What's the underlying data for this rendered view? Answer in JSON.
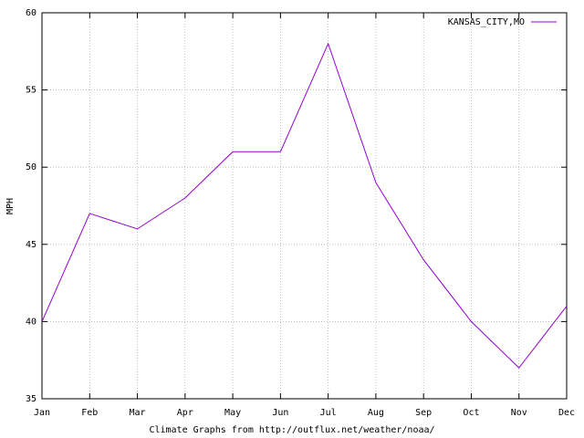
{
  "chart_data": {
    "type": "line",
    "x_label": "Climate Graphs from http://outflux.net/weather/noaa/",
    "y_label": "MPH",
    "categories": [
      "Jan",
      "Feb",
      "Mar",
      "Apr",
      "May",
      "Jun",
      "Jul",
      "Aug",
      "Sep",
      "Oct",
      "Nov",
      "Dec"
    ],
    "series": [
      {
        "name": "KANSAS_CITY,MO",
        "color": "#9400d3",
        "values": [
          40,
          47,
          46,
          48,
          51,
          51,
          58,
          49,
          44,
          40,
          37,
          41
        ]
      }
    ],
    "ylim": [
      35,
      60
    ],
    "yticks": [
      35,
      40,
      45,
      50,
      55,
      60
    ],
    "grid": true,
    "legend": "top-right"
  }
}
